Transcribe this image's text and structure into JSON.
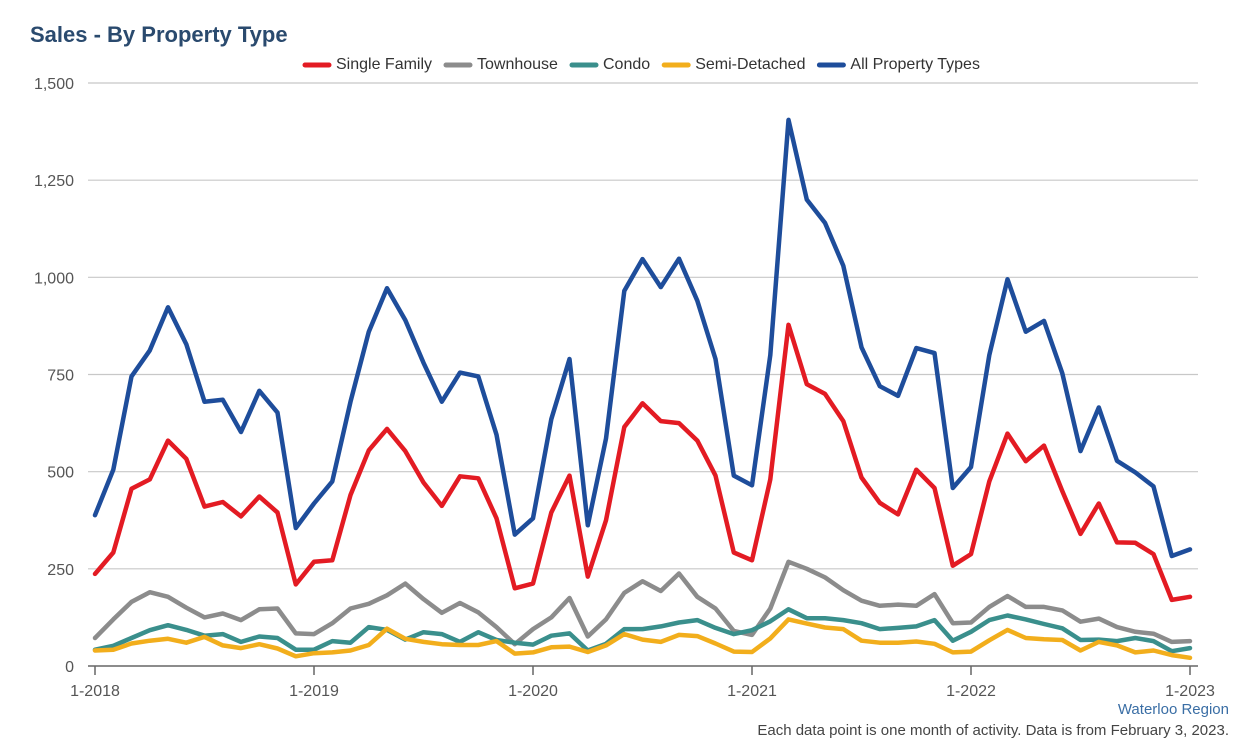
{
  "chart_data": {
    "type": "line",
    "title": "Sales - By Property Type",
    "xlabel": "",
    "ylabel": "",
    "ylim": [
      0,
      1500
    ],
    "y_ticks": [
      0,
      250,
      500,
      750,
      1000,
      1250,
      1500
    ],
    "y_tick_labels": [
      "0",
      "250",
      "500",
      "750",
      "1,000",
      "1,250",
      "1,500"
    ],
    "x_start": "1-2018",
    "x_end": "1-2023",
    "x_ticks": [
      0,
      12,
      24,
      36,
      48,
      60
    ],
    "x_tick_labels": [
      "1-2018",
      "1-2019",
      "1-2020",
      "1-2021",
      "1-2022",
      "1-2023"
    ],
    "grid": true,
    "legend_position": "top-center",
    "series": [
      {
        "name": "Single Family",
        "color": "#e31b23",
        "values": [
          237,
          292,
          456,
          480,
          580,
          533,
          410,
          422,
          385,
          436,
          395,
          210,
          268,
          272,
          440,
          555,
          610,
          553,
          472,
          412,
          488,
          483,
          380,
          200,
          212,
          395,
          490,
          230,
          375,
          615,
          676,
          630,
          625,
          580,
          490,
          292,
          272,
          480,
          878,
          725,
          700,
          630,
          485,
          420,
          390,
          505,
          458,
          258,
          288,
          475,
          598,
          527,
          567,
          450,
          340,
          418,
          318,
          317,
          288,
          170,
          178
        ]
      },
      {
        "name": "Townhouse",
        "color": "#8c8c8c",
        "values": [
          72,
          120,
          165,
          190,
          178,
          150,
          125,
          135,
          118,
          146,
          148,
          84,
          82,
          110,
          148,
          160,
          182,
          212,
          172,
          137,
          162,
          138,
          100,
          56,
          95,
          125,
          175,
          76,
          120,
          188,
          218,
          193,
          238,
          178,
          148,
          90,
          80,
          148,
          268,
          250,
          228,
          195,
          168,
          155,
          158,
          155,
          185,
          110,
          112,
          152,
          180,
          152,
          152,
          143,
          114,
          122,
          100,
          88,
          83,
          62,
          64
        ]
      },
      {
        "name": "Condo",
        "color": "#3a8f8c",
        "values": [
          42,
          52,
          72,
          92,
          105,
          93,
          78,
          82,
          62,
          76,
          72,
          42,
          42,
          64,
          60,
          100,
          93,
          68,
          87,
          82,
          62,
          87,
          67,
          60,
          55,
          78,
          84,
          40,
          57,
          95,
          95,
          102,
          112,
          118,
          98,
          82,
          92,
          115,
          146,
          123,
          123,
          118,
          110,
          95,
          98,
          102,
          118,
          65,
          88,
          118,
          130,
          120,
          108,
          97,
          67,
          68,
          64,
          72,
          64,
          38,
          46
        ]
      },
      {
        "name": "Semi-Detached",
        "color": "#f2ae1c",
        "values": [
          40,
          42,
          58,
          65,
          70,
          60,
          75,
          53,
          46,
          56,
          45,
          25,
          33,
          35,
          40,
          54,
          96,
          70,
          62,
          56,
          54,
          54,
          64,
          32,
          35,
          48,
          50,
          36,
          53,
          82,
          68,
          62,
          80,
          77,
          58,
          37,
          36,
          71,
          120,
          109,
          99,
          95,
          65,
          60,
          60,
          63,
          57,
          35,
          37,
          66,
          93,
          72,
          69,
          67,
          40,
          62,
          53,
          35,
          40,
          28,
          21
        ]
      },
      {
        "name": "All Property Types",
        "color": "#1e4d9b",
        "values": [
          388,
          505,
          745,
          812,
          923,
          828,
          680,
          685,
          602,
          708,
          652,
          355,
          418,
          475,
          680,
          860,
          972,
          890,
          780,
          680,
          755,
          745,
          595,
          338,
          380,
          635,
          790,
          362,
          585,
          965,
          1047,
          975,
          1048,
          940,
          790,
          490,
          465,
          800,
          1405,
          1200,
          1140,
          1030,
          820,
          720,
          695,
          818,
          805,
          458,
          512,
          800,
          995,
          860,
          888,
          753,
          553,
          665,
          528,
          498,
          462,
          283,
          300
        ]
      }
    ]
  },
  "footer": {
    "region": "Waterloo Region",
    "note": "Each data point is one month of activity. Data is from February 3, 2023."
  }
}
